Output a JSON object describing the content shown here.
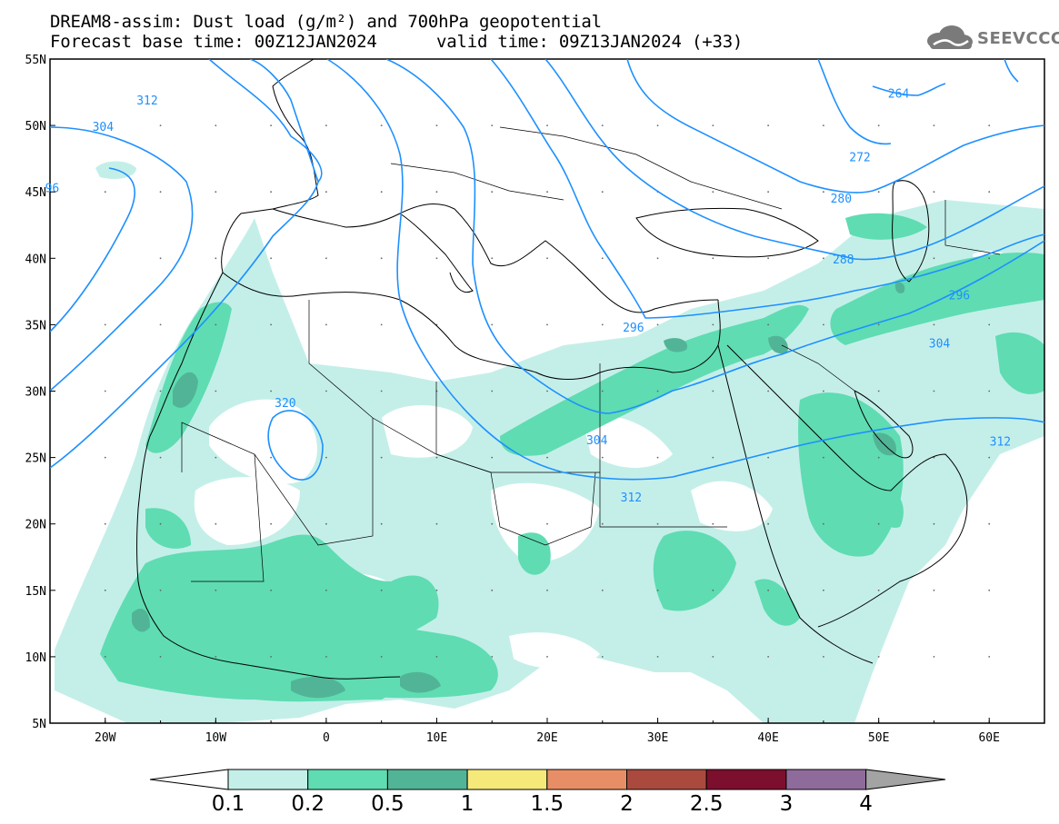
{
  "title": {
    "line1": "DREAM8-assim: Dust load (g/m²) and 700hPa geopotential",
    "line2_left": "Forecast base time: 00Z12JAN2024",
    "line2_right": "valid time: 09Z13JAN2024 (+33)"
  },
  "logo": {
    "text": "SEEVCCC",
    "icon": "cloud-icon"
  },
  "axes": {
    "lon_ticks": [
      "20W",
      "10W",
      "0",
      "10E",
      "20E",
      "30E",
      "40E",
      "50E",
      "60E"
    ],
    "lat_ticks": [
      "55N",
      "50N",
      "45N",
      "40N",
      "35N",
      "30N",
      "25N",
      "20N",
      "15N",
      "10N",
      "5N"
    ],
    "lon_range": [
      -25,
      65
    ],
    "lat_range": [
      5,
      55
    ]
  },
  "contours": {
    "color": "#1e90ff",
    "labels": [
      {
        "text": "312",
        "lon": -16.2,
        "lat": 51.8
      },
      {
        "text": "304",
        "lon": -20.2,
        "lat": 49.8
      },
      {
        "text": "96",
        "lon": -24.8,
        "lat": 45.2
      },
      {
        "text": "264",
        "lon": 51.8,
        "lat": 52.3
      },
      {
        "text": "272",
        "lon": 48.3,
        "lat": 47.5
      },
      {
        "text": "280",
        "lon": 46.6,
        "lat": 44.4
      },
      {
        "text": "288",
        "lon": 46.8,
        "lat": 39.8
      },
      {
        "text": "296",
        "lon": 57.3,
        "lat": 37.1
      },
      {
        "text": "296",
        "lon": 27.8,
        "lat": 34.7
      },
      {
        "text": "304",
        "lon": 55.5,
        "lat": 33.5
      },
      {
        "text": "304",
        "lon": 24.5,
        "lat": 26.2
      },
      {
        "text": "312",
        "lon": 61.0,
        "lat": 26.1
      },
      {
        "text": "312",
        "lon": 27.6,
        "lat": 21.9
      },
      {
        "text": "320",
        "lon": -3.7,
        "lat": 29.0
      }
    ]
  },
  "colorbar": {
    "levels": [
      "0.1",
      "0.2",
      "0.5",
      "1",
      "1.5",
      "2",
      "2.5",
      "3",
      "4"
    ],
    "colors": [
      "#ffffff",
      "#c4efe9",
      "#5fdcb2",
      "#52b496",
      "#f5e97a",
      "#e88e66",
      "#aa4a3e",
      "#7d0f2e",
      "#8f6b9c",
      "#a3a3a3"
    ]
  }
}
